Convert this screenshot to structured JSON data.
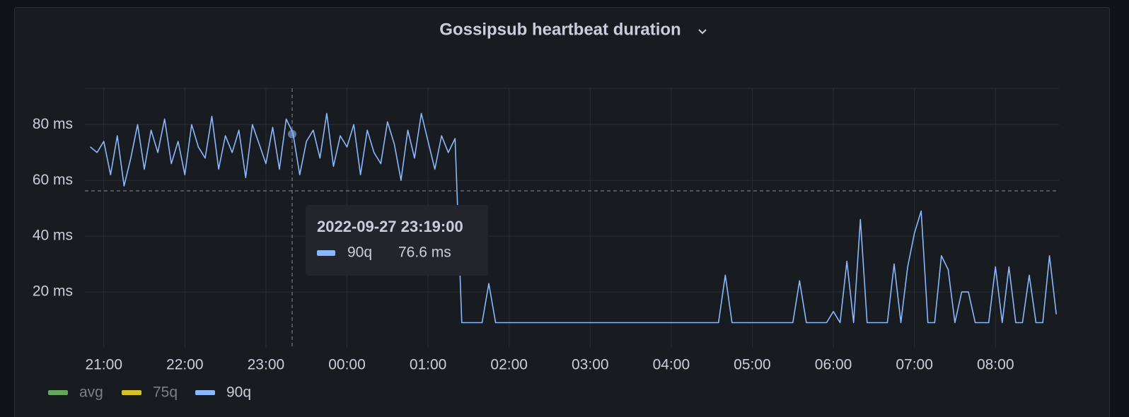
{
  "chart_data": {
    "type": "line",
    "title": "Gossipsub heartbeat duration",
    "xlim": [
      "20:46",
      "08:47"
    ],
    "xticks": [
      "21:00",
      "22:00",
      "23:00",
      "00:00",
      "01:00",
      "02:00",
      "03:00",
      "04:00",
      "05:00",
      "06:00",
      "07:00",
      "08:00"
    ],
    "ylim": [
      0,
      93
    ],
    "yticks": [
      {
        "value": 20,
        "label": "20 ms"
      },
      {
        "value": 40,
        "label": "40 ms"
      },
      {
        "value": 60,
        "label": "60 ms"
      },
      {
        "value": 80,
        "label": "80 ms"
      }
    ],
    "grid": true,
    "x": [
      "20:50",
      "20:55",
      "21:00",
      "21:05",
      "21:10",
      "21:15",
      "21:20",
      "21:25",
      "21:30",
      "21:35",
      "21:40",
      "21:45",
      "21:50",
      "21:55",
      "22:00",
      "22:05",
      "22:10",
      "22:15",
      "22:20",
      "22:25",
      "22:30",
      "22:35",
      "22:40",
      "22:45",
      "22:50",
      "22:55",
      "23:00",
      "23:05",
      "23:10",
      "23:15",
      "23:20",
      "23:25",
      "23:30",
      "23:35",
      "23:40",
      "23:45",
      "23:50",
      "23:55",
      "00:00",
      "00:05",
      "00:10",
      "00:15",
      "00:20",
      "00:25",
      "00:30",
      "00:35",
      "00:40",
      "00:45",
      "00:50",
      "00:55",
      "01:00",
      "01:05",
      "01:10",
      "01:15",
      "01:20",
      "01:25",
      "01:30",
      "01:35",
      "01:40",
      "01:45",
      "01:50",
      "01:55",
      "02:00",
      "02:05",
      "02:10",
      "02:15",
      "02:20",
      "02:25",
      "02:30",
      "02:35",
      "02:40",
      "02:45",
      "02:50",
      "02:55",
      "03:00",
      "03:05",
      "03:10",
      "03:15",
      "03:20",
      "03:25",
      "03:30",
      "03:35",
      "03:40",
      "03:45",
      "03:50",
      "03:55",
      "04:00",
      "04:05",
      "04:10",
      "04:15",
      "04:20",
      "04:25",
      "04:30",
      "04:35",
      "04:40",
      "04:45",
      "04:50",
      "04:55",
      "05:00",
      "05:05",
      "05:10",
      "05:15",
      "05:20",
      "05:25",
      "05:30",
      "05:35",
      "05:40",
      "05:45",
      "05:50",
      "05:55",
      "06:00",
      "06:05",
      "06:10",
      "06:15",
      "06:20",
      "06:25",
      "06:30",
      "06:35",
      "06:40",
      "06:45",
      "06:50",
      "06:55",
      "07:00",
      "07:05",
      "07:10",
      "07:15",
      "07:20",
      "07:25",
      "07:30",
      "07:35",
      "07:40",
      "07:45",
      "07:50",
      "07:55",
      "08:00",
      "08:05",
      "08:10",
      "08:15",
      "08:20",
      "08:25",
      "08:30",
      "08:35",
      "08:40",
      "08:45"
    ],
    "series": [
      {
        "name": "90q",
        "color": "#8ab8ff",
        "values": [
          72,
          70,
          74,
          62,
          76,
          58,
          68,
          80,
          64,
          78,
          70,
          82,
          66,
          74,
          62,
          80,
          72,
          68,
          83,
          64,
          76,
          70,
          78,
          61,
          80,
          73,
          66,
          79,
          64,
          82,
          77,
          62,
          74,
          78,
          68,
          84,
          65,
          76,
          72,
          80,
          62,
          78,
          70,
          66,
          81,
          73,
          60,
          78,
          68,
          84,
          74,
          64,
          76,
          70,
          75,
          9,
          9,
          9,
          9,
          23,
          9,
          9,
          9,
          9,
          9,
          9,
          9,
          9,
          9,
          9,
          9,
          9,
          9,
          9,
          9,
          9,
          9,
          9,
          9,
          9,
          9,
          9,
          9,
          9,
          9,
          9,
          9,
          9,
          9,
          9,
          9,
          9,
          9,
          9,
          26,
          9,
          9,
          9,
          9,
          9,
          9,
          9,
          9,
          9,
          9,
          24,
          9,
          9,
          9,
          9,
          13,
          9,
          31,
          9,
          46,
          9,
          9,
          9,
          9,
          30,
          9,
          29,
          41,
          49,
          9,
          9,
          33,
          28,
          9,
          20,
          20,
          9,
          9,
          9,
          29,
          9,
          29,
          9,
          9,
          26,
          9,
          9,
          33,
          12
        ]
      }
    ],
    "legend": [
      {
        "name": "avg",
        "color": "#73bf69",
        "hidden": true
      },
      {
        "name": "75q",
        "color": "#fade2a",
        "hidden": true
      },
      {
        "name": "90q",
        "color": "#8ab8ff",
        "hidden": false
      }
    ],
    "tooltip": {
      "time": "2022-09-27 23:19:00",
      "series": "90q",
      "value": 76.6,
      "value_label": "76.6 ms"
    }
  }
}
